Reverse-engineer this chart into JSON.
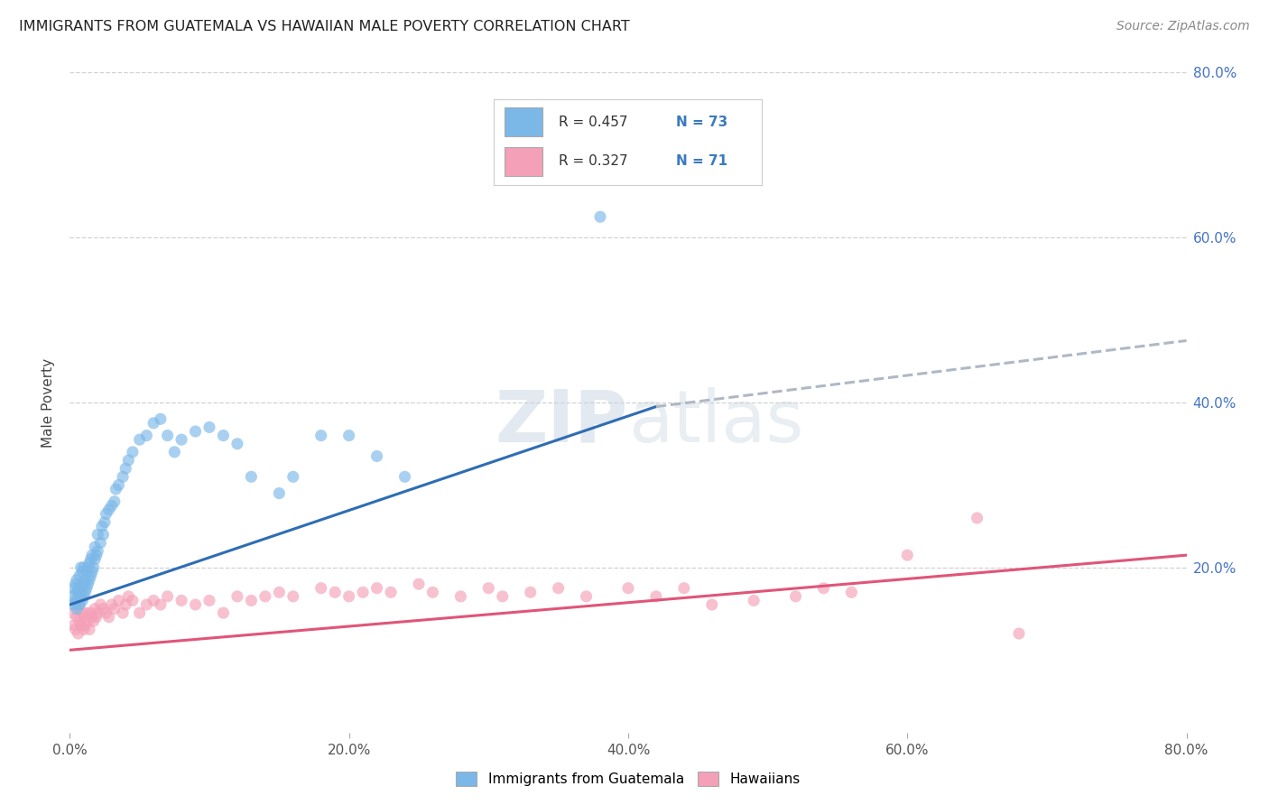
{
  "title": "IMMIGRANTS FROM GUATEMALA VS HAWAIIAN MALE POVERTY CORRELATION CHART",
  "source": "Source: ZipAtlas.com",
  "ylabel": "Male Poverty",
  "x_min": 0.0,
  "x_max": 0.8,
  "y_min": 0.0,
  "y_max": 0.8,
  "blue_color": "#7bb8e8",
  "pink_color": "#f4a0b8",
  "blue_line_color": "#2e6db4",
  "pink_line_color": "#e05578",
  "dashed_line_color": "#b0b8c4",
  "watermark_color": "#d0dce8",
  "legend_labels": [
    "Immigrants from Guatemala",
    "Hawaiians"
  ],
  "blue_scatter_x": [
    0.002,
    0.003,
    0.003,
    0.004,
    0.004,
    0.005,
    0.005,
    0.005,
    0.006,
    0.006,
    0.007,
    0.007,
    0.007,
    0.008,
    0.008,
    0.008,
    0.009,
    0.009,
    0.009,
    0.01,
    0.01,
    0.01,
    0.011,
    0.011,
    0.012,
    0.012,
    0.013,
    0.013,
    0.014,
    0.014,
    0.015,
    0.015,
    0.016,
    0.016,
    0.017,
    0.018,
    0.018,
    0.019,
    0.02,
    0.02,
    0.022,
    0.023,
    0.024,
    0.025,
    0.026,
    0.028,
    0.03,
    0.032,
    0.033,
    0.035,
    0.038,
    0.04,
    0.042,
    0.045,
    0.05,
    0.055,
    0.06,
    0.065,
    0.07,
    0.075,
    0.08,
    0.09,
    0.1,
    0.11,
    0.12,
    0.13,
    0.15,
    0.16,
    0.18,
    0.2,
    0.22,
    0.24,
    0.38
  ],
  "blue_scatter_y": [
    0.165,
    0.155,
    0.175,
    0.16,
    0.18,
    0.15,
    0.17,
    0.185,
    0.16,
    0.175,
    0.155,
    0.17,
    0.19,
    0.165,
    0.18,
    0.2,
    0.16,
    0.175,
    0.195,
    0.165,
    0.18,
    0.2,
    0.17,
    0.185,
    0.175,
    0.195,
    0.18,
    0.2,
    0.185,
    0.205,
    0.19,
    0.21,
    0.195,
    0.215,
    0.2,
    0.21,
    0.225,
    0.215,
    0.22,
    0.24,
    0.23,
    0.25,
    0.24,
    0.255,
    0.265,
    0.27,
    0.275,
    0.28,
    0.295,
    0.3,
    0.31,
    0.32,
    0.33,
    0.34,
    0.355,
    0.36,
    0.375,
    0.38,
    0.36,
    0.34,
    0.355,
    0.365,
    0.37,
    0.36,
    0.35,
    0.31,
    0.29,
    0.31,
    0.36,
    0.36,
    0.335,
    0.31,
    0.625
  ],
  "pink_scatter_x": [
    0.002,
    0.003,
    0.004,
    0.005,
    0.006,
    0.007,
    0.007,
    0.008,
    0.009,
    0.01,
    0.01,
    0.011,
    0.012,
    0.013,
    0.014,
    0.015,
    0.016,
    0.017,
    0.018,
    0.019,
    0.02,
    0.022,
    0.024,
    0.026,
    0.028,
    0.03,
    0.032,
    0.035,
    0.038,
    0.04,
    0.042,
    0.045,
    0.05,
    0.055,
    0.06,
    0.065,
    0.07,
    0.08,
    0.09,
    0.1,
    0.11,
    0.12,
    0.13,
    0.14,
    0.15,
    0.16,
    0.18,
    0.19,
    0.2,
    0.21,
    0.22,
    0.23,
    0.25,
    0.26,
    0.28,
    0.3,
    0.31,
    0.33,
    0.35,
    0.37,
    0.4,
    0.42,
    0.44,
    0.46,
    0.49,
    0.52,
    0.54,
    0.56,
    0.6,
    0.65,
    0.68
  ],
  "pink_scatter_y": [
    0.145,
    0.13,
    0.125,
    0.14,
    0.12,
    0.135,
    0.155,
    0.13,
    0.145,
    0.125,
    0.14,
    0.13,
    0.145,
    0.135,
    0.125,
    0.145,
    0.14,
    0.135,
    0.15,
    0.14,
    0.145,
    0.155,
    0.15,
    0.145,
    0.14,
    0.155,
    0.15,
    0.16,
    0.145,
    0.155,
    0.165,
    0.16,
    0.145,
    0.155,
    0.16,
    0.155,
    0.165,
    0.16,
    0.155,
    0.16,
    0.145,
    0.165,
    0.16,
    0.165,
    0.17,
    0.165,
    0.175,
    0.17,
    0.165,
    0.17,
    0.175,
    0.17,
    0.18,
    0.17,
    0.165,
    0.175,
    0.165,
    0.17,
    0.175,
    0.165,
    0.175,
    0.165,
    0.175,
    0.155,
    0.16,
    0.165,
    0.175,
    0.17,
    0.215,
    0.26,
    0.12
  ],
  "blue_line_x0": 0.0,
  "blue_line_x_solid_end": 0.42,
  "blue_line_x_dashed_end": 0.8,
  "blue_line_y0": 0.155,
  "blue_line_y_solid_end": 0.395,
  "blue_line_y_dashed_end": 0.475,
  "pink_line_x0": 0.0,
  "pink_line_x_end": 0.8,
  "pink_line_y0": 0.1,
  "pink_line_y_end": 0.215
}
